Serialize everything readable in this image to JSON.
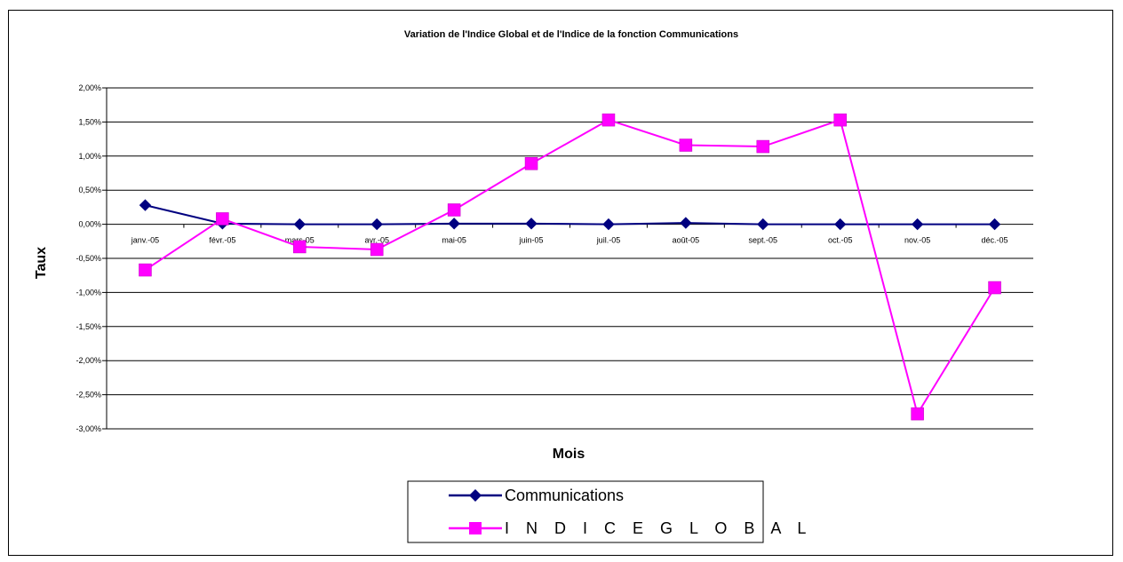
{
  "colors": {
    "communications": "#000080",
    "indice_global": "#ff00ff",
    "grid": "#000000"
  },
  "chart_data": {
    "type": "line",
    "title": "Variation de l'Indice Global et de l'Indice de la fonction Communications",
    "xlabel": "Mois",
    "ylabel": "Taux",
    "categories": [
      "janv.-05",
      "févr.-05",
      "mars-05",
      "avr.-05",
      "mai-05",
      "juin-05",
      "juil.-05",
      "août-05",
      "sept.-05",
      "oct.-05",
      "nov.-05",
      "déc.-05"
    ],
    "ylim": [
      -3.0,
      2.0
    ],
    "yticks": [
      2.0,
      1.5,
      1.0,
      0.5,
      0.0,
      -0.5,
      -1.0,
      -1.5,
      -2.0,
      -2.5,
      -3.0
    ],
    "ytick_labels": [
      "2,00%",
      "1,50%",
      "1,00%",
      "0,50%",
      "0,00%",
      "-0,50%",
      "-1,00%",
      "-1,50%",
      "-2,00%",
      "-2,50%",
      "-3,00%"
    ],
    "grid": true,
    "legend_position": "bottom",
    "series": [
      {
        "name": "Communications",
        "marker": "diamond",
        "values": [
          0.28,
          0.01,
          0.0,
          0.0,
          0.01,
          0.01,
          0.0,
          0.02,
          0.0,
          0.0,
          0.0,
          0.0
        ]
      },
      {
        "name": "I N D I C E   G L O B A L",
        "marker": "square",
        "values": [
          -0.67,
          0.08,
          -0.33,
          -0.37,
          0.21,
          0.89,
          1.53,
          1.16,
          1.14,
          1.53,
          -2.78,
          -0.93
        ]
      }
    ]
  }
}
